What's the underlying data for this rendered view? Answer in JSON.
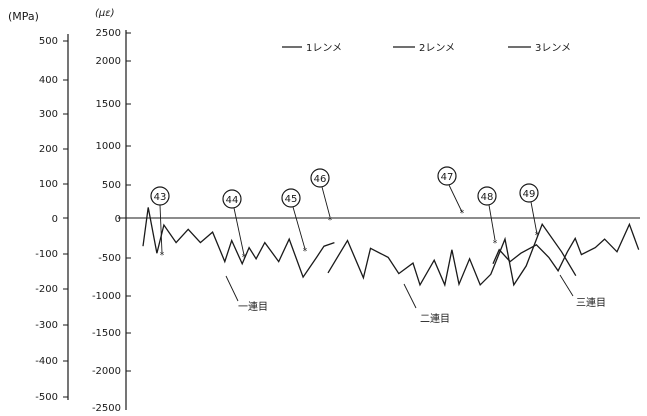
{
  "chart_data": {
    "type": "line",
    "title": "",
    "left_axis": {
      "unit": "(MPa)",
      "ticks": [
        "500",
        "400",
        "300",
        "200",
        "100",
        "0",
        "-100",
        "-200",
        "-300",
        "-400",
        "-500"
      ],
      "ylim": [
        -500,
        500
      ]
    },
    "right_axis": {
      "unit": "(με)",
      "ticks": [
        "2500",
        "2000",
        "1500",
        "1000",
        "500",
        "0",
        "-500",
        "-1000",
        "-1500",
        "-2000",
        "-2500"
      ],
      "ylim": [
        -2500,
        2500
      ]
    },
    "legend": {
      "placement": "top-right",
      "entries": [
        "1レンメ",
        "2レンメ",
        "3レンメ"
      ]
    },
    "series": [
      {
        "name": "1レンメ",
        "values": [
          [
            0.0,
            -400
          ],
          [
            0.015,
            150
          ],
          [
            0.04,
            -500
          ],
          [
            0.06,
            -100
          ],
          [
            0.095,
            -350
          ],
          [
            0.13,
            -160
          ],
          [
            0.165,
            -350
          ],
          [
            0.2,
            -200
          ],
          [
            0.235,
            -620
          ],
          [
            0.255,
            -320
          ],
          [
            0.285,
            -650
          ],
          [
            0.305,
            -420
          ],
          [
            0.325,
            -580
          ],
          [
            0.35,
            -350
          ],
          [
            0.39,
            -620
          ],
          [
            0.42,
            -300
          ],
          [
            0.46,
            -840
          ],
          [
            0.5,
            -550
          ],
          [
            0.52,
            -400
          ],
          [
            0.55,
            -350
          ]
        ]
      },
      {
        "name": "2レンメ",
        "values": [
          [
            1.0,
            -780
          ],
          [
            1.055,
            -320
          ],
          [
            1.1,
            -850
          ],
          [
            1.12,
            -430
          ],
          [
            1.17,
            -560
          ],
          [
            1.2,
            -790
          ],
          [
            1.24,
            -640
          ],
          [
            1.26,
            -950
          ],
          [
            1.3,
            -600
          ],
          [
            1.33,
            -950
          ],
          [
            1.35,
            -450
          ],
          [
            1.37,
            -940
          ],
          [
            1.4,
            -580
          ],
          [
            1.43,
            -950
          ],
          [
            1.46,
            -800
          ],
          [
            1.5,
            -300
          ],
          [
            1.525,
            -950
          ],
          [
            1.56,
            -680
          ],
          [
            1.605,
            -90
          ],
          [
            1.66,
            -480
          ],
          [
            1.7,
            -820
          ]
        ]
      },
      {
        "name": "3レンメ",
        "values": [
          [
            2.0,
            -650
          ],
          [
            2.02,
            -450
          ],
          [
            2.055,
            -620
          ],
          [
            2.09,
            -500
          ],
          [
            2.14,
            -380
          ],
          [
            2.18,
            -560
          ],
          [
            2.21,
            -750
          ],
          [
            2.24,
            -480
          ],
          [
            2.265,
            -290
          ],
          [
            2.285,
            -520
          ],
          [
            2.33,
            -420
          ],
          [
            2.36,
            -300
          ],
          [
            2.4,
            -480
          ],
          [
            2.44,
            -90
          ],
          [
            2.47,
            -450
          ]
        ]
      }
    ],
    "markers": [
      {
        "label": "43",
        "x": 0.04,
        "y": -500
      },
      {
        "label": "44",
        "x": 0.325,
        "y": -580
      },
      {
        "label": "45",
        "x": 0.53,
        "y": -400
      },
      {
        "label": "46",
        "x": 0.79,
        "y": -10
      },
      {
        "label": "47",
        "x": 1.74,
        "y": 30
      },
      {
        "label": "48",
        "x": 1.87,
        "y": -290
      },
      {
        "label": "49",
        "x": 2.125,
        "y": -210
      }
    ],
    "annotations": [
      "一連目",
      "二連目",
      "三連目"
    ],
    "grid": false
  },
  "colors": {
    "ink": "#1a1a1a",
    "background": "#ffffff"
  }
}
